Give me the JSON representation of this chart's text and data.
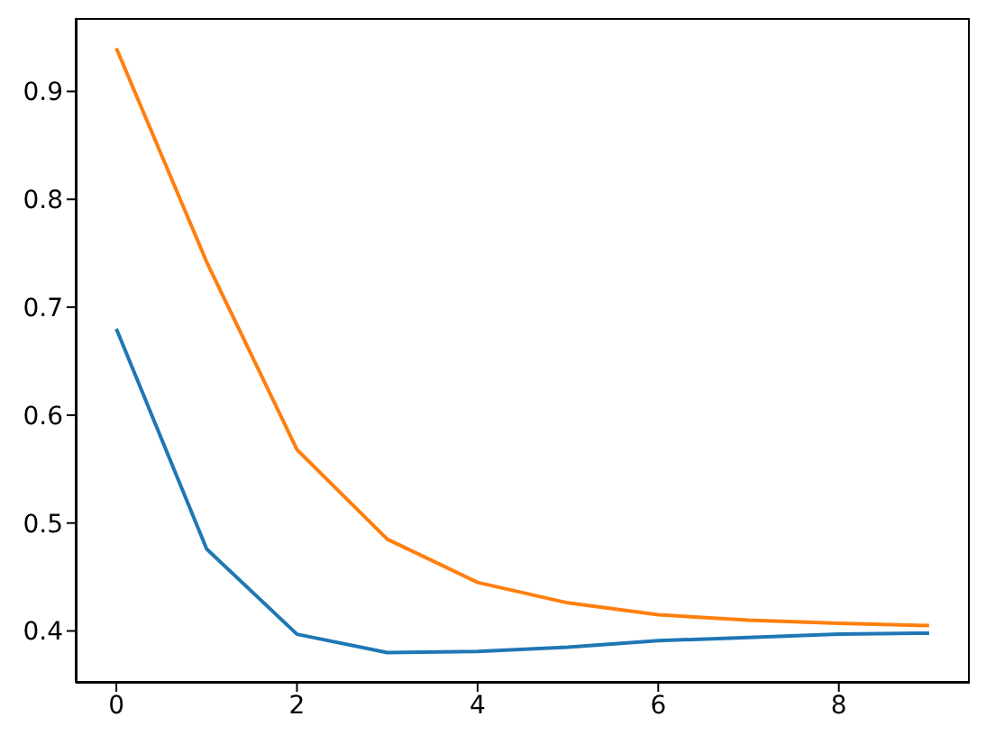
{
  "chart_data": {
    "type": "line",
    "x": [
      0,
      1,
      2,
      3,
      4,
      5,
      6,
      7,
      8,
      9
    ],
    "series": [
      {
        "color": "#1f77b4",
        "values": [
          0.68,
          0.476,
          0.397,
          0.38,
          0.381,
          0.385,
          0.391,
          0.394,
          0.397,
          0.398
        ]
      },
      {
        "color": "#ff7f0e",
        "values": [
          0.94,
          0.742,
          0.568,
          0.485,
          0.445,
          0.426,
          0.415,
          0.41,
          0.407,
          0.405
        ]
      }
    ],
    "xlim": [
      -0.45,
      9.45
    ],
    "xticks": [
      0,
      2,
      4,
      6,
      8
    ],
    "ylim": [
      0.352,
      0.968
    ],
    "yticks": [
      0.4,
      0.5,
      0.6,
      0.7,
      0.8,
      0.9
    ]
  }
}
